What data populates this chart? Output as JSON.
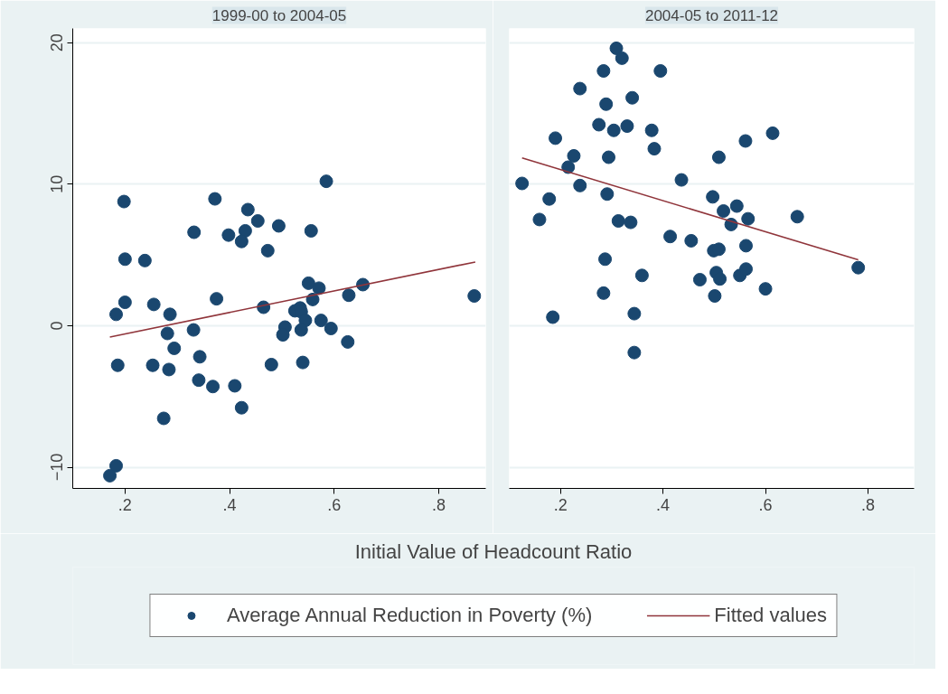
{
  "chart_data": [
    {
      "type": "scatter",
      "title": "1999-00 to 2004-05",
      "xlabel": "Initial Value of Headcount Ratio",
      "xlim": [
        0.1,
        0.89
      ],
      "ylim": [
        -11.5,
        21
      ],
      "xticks": [
        {
          "value": 0.2,
          "label": ".2"
        },
        {
          "value": 0.4,
          "label": ".4"
        },
        {
          "value": 0.6,
          "label": ".6"
        },
        {
          "value": 0.8,
          "label": ".8"
        }
      ],
      "yticks": [
        -10,
        0,
        10,
        20
      ],
      "grid": "y",
      "legend": "bottom",
      "series": [
        {
          "name": "Average Annual Reduction in Poverty (%)",
          "marker": "circle",
          "color": "#1a476f",
          "x": [
            0.198,
            0.372,
            0.435,
            0.454,
            0.332,
            0.43,
            0.494,
            0.398,
            0.556,
            0.423,
            0.473,
            0.585,
            0.2,
            0.238,
            0.551,
            0.571,
            0.655,
            0.628,
            0.868,
            0.559,
            0.375,
            0.2,
            0.255,
            0.465,
            0.183,
            0.286,
            0.525,
            0.535,
            0.537,
            0.545,
            0.575,
            0.506,
            0.331,
            0.537,
            0.594,
            0.281,
            0.502,
            0.626,
            0.294,
            0.343,
            0.186,
            0.253,
            0.284,
            0.48,
            0.54,
            0.341,
            0.368,
            0.41,
            0.423,
            0.274,
            0.183,
            0.171
          ],
          "values": [
            8.77,
            8.96,
            8.2,
            7.4,
            6.6,
            6.7,
            7.05,
            6.4,
            6.7,
            5.95,
            5.3,
            10.2,
            4.7,
            4.6,
            3.0,
            2.65,
            2.9,
            2.15,
            2.1,
            1.85,
            1.9,
            1.65,
            1.5,
            1.3,
            0.8,
            0.8,
            1.05,
            1.25,
            0.98,
            0.37,
            0.37,
            -0.1,
            -0.3,
            -0.3,
            -0.2,
            -0.55,
            -0.65,
            -1.15,
            -1.6,
            -2.2,
            -2.8,
            -2.8,
            -3.1,
            -2.75,
            -2.6,
            -3.85,
            -4.3,
            -4.25,
            -5.8,
            -6.55,
            -9.9,
            -10.6
          ]
        },
        {
          "name": "Fitted values",
          "type": "line",
          "color": "#90353b",
          "x": [
            0.171,
            0.87
          ],
          "values": [
            -0.8,
            4.5
          ]
        }
      ]
    },
    {
      "type": "scatter",
      "title": "2004-05 to 2011-12",
      "xlim": [
        0.1,
        0.89
      ],
      "ylim": [
        -11.5,
        21
      ],
      "xticks": [
        {
          "value": 0.2,
          "label": ".2"
        },
        {
          "value": 0.4,
          "label": ".4"
        },
        {
          "value": 0.6,
          "label": ".6"
        },
        {
          "value": 0.8,
          "label": ".8"
        }
      ],
      "yticks": [
        -10,
        0,
        10,
        20
      ],
      "grid": "y",
      "tick_labels": "x",
      "series": [
        {
          "marker": "circle",
          "color": "#1a476f",
          "x": [
            0.309,
            0.32,
            0.284,
            0.395,
            0.238,
            0.289,
            0.34,
            0.275,
            0.33,
            0.304,
            0.378,
            0.19,
            0.614,
            0.561,
            0.383,
            0.226,
            0.294,
            0.509,
            0.215,
            0.125,
            0.238,
            0.436,
            0.291,
            0.178,
            0.497,
            0.544,
            0.518,
            0.159,
            0.313,
            0.337,
            0.566,
            0.662,
            0.533,
            0.414,
            0.455,
            0.562,
            0.499,
            0.509,
            0.287,
            0.781,
            0.359,
            0.472,
            0.504,
            0.511,
            0.55,
            0.562,
            0.6,
            0.284,
            0.501,
            0.185,
            0.344,
            0.344
          ],
          "values": [
            19.6,
            18.9,
            18.0,
            18.0,
            16.75,
            15.65,
            16.1,
            14.2,
            14.1,
            13.8,
            13.8,
            13.25,
            13.6,
            13.05,
            12.5,
            12.0,
            11.9,
            11.9,
            11.2,
            10.05,
            9.9,
            10.3,
            9.3,
            8.95,
            9.1,
            8.45,
            8.1,
            7.5,
            7.4,
            7.3,
            7.55,
            7.7,
            7.15,
            6.3,
            6.0,
            5.65,
            5.3,
            5.4,
            4.7,
            4.1,
            3.55,
            3.25,
            3.75,
            3.3,
            3.55,
            4.0,
            2.6,
            2.3,
            2.1,
            0.6,
            0.85,
            -1.9
          ]
        },
        {
          "type": "line",
          "color": "#90353b",
          "x": [
            0.125,
            0.781
          ],
          "values": [
            11.85,
            4.65
          ]
        }
      ]
    }
  ]
}
